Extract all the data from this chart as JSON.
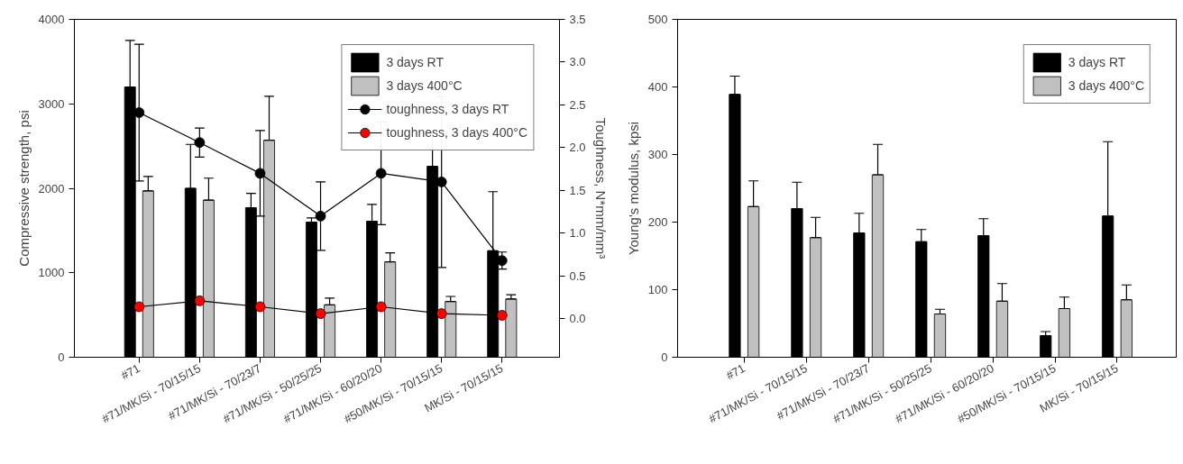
{
  "chart_data": [
    {
      "type": "bar",
      "ylabel": "Compressive strength, psi",
      "y2label": "Toughness, N*mm/mm³",
      "categories": [
        "#71",
        "#71/MK/Si - 70/15/15",
        "#71/MK/Si - 70/23/7",
        "#71/MK/Si - 50/25/25",
        "#71/MK/Si - 60/20/20",
        "#50/MK/Si - 70/15/15",
        "MK/Si - 70/15/15"
      ],
      "ylim": [
        0,
        4000
      ],
      "yticks": [
        0,
        1000,
        2000,
        3000,
        4000
      ],
      "y2lim": [
        -0.45,
        3.5
      ],
      "y2ticks": [
        {
          "value": 0,
          "label": "0.0"
        },
        {
          "value": 0.5,
          "label": "0.5"
        },
        {
          "value": 1,
          "label": "1.0"
        },
        {
          "value": 1.5,
          "label": "1.5"
        },
        {
          "value": 2,
          "label": "2.0"
        },
        {
          "value": 2.5,
          "label": "2.5"
        },
        {
          "value": 3,
          "label": "3.0"
        },
        {
          "value": 3.5,
          "label": "3.5"
        }
      ],
      "grid": false,
      "legend": "top right",
      "series": [
        {
          "name": "3 days RT",
          "color": "#000000",
          "values": [
            3200,
            2000,
            1770,
            1600,
            1610,
            2260,
            1260
          ],
          "errors": [
            [
              3200,
              3750
            ],
            [
              2000,
              2520
            ],
            [
              1770,
              1940
            ],
            [
              1600,
              1650
            ],
            [
              1610,
              1810
            ],
            [
              2260,
              2650
            ],
            [
              1260,
              1960
            ]
          ]
        },
        {
          "name": "3 days 400°C",
          "color": "#c0c0c0",
          "values": [
            1970,
            1860,
            2570,
            620,
            1130,
            660,
            690
          ],
          "errors": [
            [
              1970,
              2140
            ],
            [
              1860,
              2120
            ],
            [
              2570,
              3090
            ],
            [
              620,
              700
            ],
            [
              1130,
              1235
            ],
            [
              660,
              720
            ],
            [
              690,
              740
            ]
          ]
        },
        {
          "type": "line",
          "axis": "y2",
          "marker": "circle",
          "name": "toughness, 3 days RT",
          "color": "#000000",
          "values": [
            2.41,
            2.06,
            1.7,
            1.2,
            1.7,
            1.6,
            0.68
          ],
          "errors": [
            0.8,
            0.17,
            0.5,
            0.4,
            0.6,
            1.0,
            0.1
          ]
        },
        {
          "type": "line",
          "axis": "y2",
          "marker": "circle",
          "name": "toughness, 3 days 400°C",
          "color": "#ff0000",
          "values": [
            0.14,
            0.21,
            0.14,
            0.06,
            0.14,
            0.06,
            0.04
          ]
        }
      ]
    },
    {
      "type": "bar",
      "ylabel": "Young's modulus, kpsi",
      "categories": [
        "#71",
        "#71/MK/Si - 70/15/15",
        "#71/MK/Si - 70/23/7",
        "#71/MK/Si - 50/25/25",
        "#71/MK/Si - 60/20/20",
        "#50/MK/Si - 70/15/15",
        "MK/Si - 70/15/15"
      ],
      "ylim": [
        0,
        500
      ],
      "yticks": [
        0,
        100,
        200,
        300,
        400,
        500
      ],
      "grid": false,
      "legend": "top right",
      "series": [
        {
          "name": "3 days RT",
          "color": "#000000",
          "values": [
            389,
            220,
            184,
            171,
            180,
            32,
            209
          ],
          "errors": [
            [
              389,
              416
            ],
            [
              220,
              259
            ],
            [
              184,
              213
            ],
            [
              171,
              189
            ],
            [
              180,
              205
            ],
            [
              32,
              38
            ],
            [
              209,
              319
            ]
          ]
        },
        {
          "name": "3 days 400°C",
          "color": "#c0c0c0",
          "values": [
            223,
            177,
            270,
            64,
            83,
            72,
            85
          ],
          "errors": [
            [
              223,
              261
            ],
            [
              177,
              207
            ],
            [
              270,
              315
            ],
            [
              64,
              71
            ],
            [
              83,
              109
            ],
            [
              72,
              89
            ],
            [
              85,
              107
            ]
          ]
        }
      ]
    }
  ]
}
